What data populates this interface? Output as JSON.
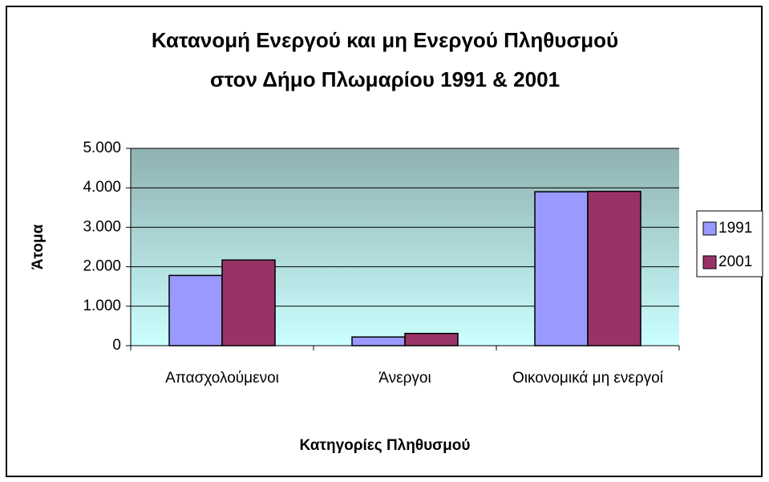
{
  "chart_data": {
    "type": "bar",
    "title": "Κατανομή Ενεργού και μη Ενεργού Πληθυσμού",
    "subtitle": "στον Δήμο Πλωμαρίου 1991 & 2001",
    "y_label": "Άτομα",
    "x_label": "Κατηγορίες Πληθυσμού",
    "categories": [
      "Απασχολούμενοι",
      "Άνεργοι",
      "Οικονομικά μη ενεργοί"
    ],
    "series": [
      {
        "name": "1991",
        "color": "#9999ff",
        "values": [
          1780,
          220,
          3900
        ]
      },
      {
        "name": "2001",
        "color": "#993366",
        "values": [
          2170,
          310,
          3910
        ]
      }
    ],
    "ylim": [
      0,
      5000
    ],
    "yticks": [
      0,
      {
        "value": 1000,
        "label": "1.000"
      },
      {
        "value": 2000,
        "label": "2.000"
      },
      {
        "value": 3000,
        "label": "3.000"
      },
      {
        "value": 4000,
        "label": "4.000"
      },
      {
        "value": 5000,
        "label": "5.000"
      }
    ],
    "grid": true,
    "legend": "right"
  }
}
